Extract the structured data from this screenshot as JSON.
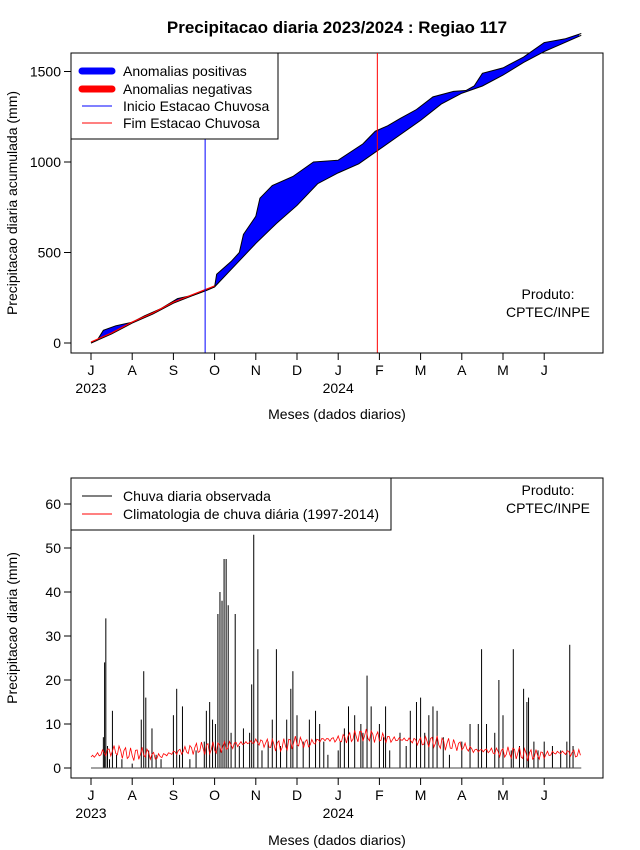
{
  "title": "Precipitacao diaria 2023/2024 : Regiao 117",
  "chart_data": [
    {
      "type": "area",
      "ylabel": "Precipitacao diaria acumulada (mm)",
      "xlabel": "Meses (dados diarios)",
      "ylim": [
        0,
        1750
      ],
      "yticks": [
        0,
        500,
        1000,
        1500
      ],
      "month_labels": [
        "J",
        "A",
        "S",
        "O",
        "N",
        "D",
        "J",
        "F",
        "M",
        "A",
        "M",
        "J"
      ],
      "year_labels": [
        "2023",
        "2024"
      ],
      "legend_placement": "top-left",
      "legend": [
        {
          "label": "Anomalias positivas",
          "color": "#0000ff"
        },
        {
          "label": "Anomalias negativas",
          "color": "#ff0000"
        },
        {
          "label": "Inicio Estacao Chuvosa",
          "color": "#0000ff"
        },
        {
          "label": "Fim Estacao Chuvosa",
          "color": "#ff0000"
        }
      ],
      "product_line1": "Produto:",
      "product_line2": "CPTEC/INPE",
      "season_start_month_index": 2.77,
      "season_end_month_index": 6.95,
      "observed_cumulative": [
        [
          0,
          0
        ],
        [
          0.15,
          15
        ],
        [
          0.3,
          70
        ],
        [
          0.6,
          95
        ],
        [
          1.0,
          115
        ],
        [
          1.3,
          150
        ],
        [
          1.7,
          190
        ],
        [
          2.1,
          245
        ],
        [
          2.5,
          265
        ],
        [
          2.8,
          290
        ],
        [
          3.0,
          310
        ],
        [
          3.05,
          380
        ],
        [
          3.4,
          450
        ],
        [
          3.6,
          500
        ],
        [
          3.7,
          600
        ],
        [
          4.0,
          700
        ],
        [
          4.1,
          800
        ],
        [
          4.4,
          870
        ],
        [
          4.9,
          920
        ],
        [
          5.4,
          1000
        ],
        [
          6.0,
          1010
        ],
        [
          6.6,
          1100
        ],
        [
          6.9,
          1170
        ],
        [
          7.2,
          1200
        ],
        [
          7.5,
          1240
        ],
        [
          7.9,
          1290
        ],
        [
          8.3,
          1360
        ],
        [
          8.8,
          1390
        ],
        [
          9.1,
          1395
        ],
        [
          9.3,
          1420
        ],
        [
          9.5,
          1490
        ],
        [
          10.0,
          1520
        ],
        [
          10.5,
          1580
        ],
        [
          11.0,
          1660
        ],
        [
          11.5,
          1680
        ],
        [
          11.9,
          1710
        ]
      ],
      "climatology_cumulative": [
        [
          0,
          0
        ],
        [
          0.5,
          50
        ],
        [
          1.0,
          110
        ],
        [
          1.5,
          160
        ],
        [
          2.0,
          220
        ],
        [
          2.5,
          265
        ],
        [
          3.0,
          310
        ],
        [
          3.5,
          430
        ],
        [
          4.0,
          550
        ],
        [
          4.5,
          660
        ],
        [
          5.0,
          760
        ],
        [
          5.5,
          880
        ],
        [
          6.0,
          940
        ],
        [
          6.5,
          990
        ],
        [
          7.0,
          1070
        ],
        [
          7.5,
          1150
        ],
        [
          8.0,
          1230
        ],
        [
          8.5,
          1320
        ],
        [
          9.0,
          1380
        ],
        [
          9.5,
          1420
        ],
        [
          10.0,
          1480
        ],
        [
          10.5,
          1550
        ],
        [
          11.0,
          1610
        ],
        [
          11.5,
          1660
        ],
        [
          11.9,
          1700
        ]
      ]
    },
    {
      "type": "bar",
      "ylabel": "Precipitacao diaria (mm)",
      "xlabel": "Meses (dados diarios)",
      "ylim": [
        0,
        65
      ],
      "yticks": [
        0,
        10,
        20,
        30,
        40,
        50,
        60
      ],
      "month_labels": [
        "J",
        "A",
        "S",
        "O",
        "N",
        "D",
        "J",
        "F",
        "M",
        "A",
        "M",
        "J"
      ],
      "year_labels": [
        "2023",
        "2024"
      ],
      "legend_placement": "top-left",
      "legend": [
        {
          "label": "Chuva diaria observada",
          "color": "#000000"
        },
        {
          "label": "Climatologia de chuva diária (1997-2014)",
          "color": "#ff0000"
        }
      ],
      "product_line1": "Produto:",
      "product_line2": "CPTEC/INPE",
      "observed_bars": [
        [
          0.3,
          7
        ],
        [
          0.33,
          24
        ],
        [
          0.36,
          34
        ],
        [
          0.4,
          5
        ],
        [
          0.45,
          2
        ],
        [
          0.52,
          13
        ],
        [
          0.62,
          3
        ],
        [
          0.75,
          2
        ],
        [
          1.0,
          1
        ],
        [
          1.22,
          11
        ],
        [
          1.28,
          22
        ],
        [
          1.33,
          16
        ],
        [
          1.4,
          4
        ],
        [
          1.48,
          9
        ],
        [
          1.58,
          3
        ],
        [
          1.7,
          2
        ],
        [
          2.0,
          12
        ],
        [
          2.08,
          18
        ],
        [
          2.15,
          3
        ],
        [
          2.22,
          14
        ],
        [
          2.4,
          2
        ],
        [
          2.55,
          4
        ],
        [
          2.75,
          6
        ],
        [
          2.8,
          13
        ],
        [
          2.88,
          15
        ],
        [
          2.95,
          11
        ],
        [
          3.02,
          10
        ],
        [
          3.08,
          35
        ],
        [
          3.13,
          40
        ],
        [
          3.18,
          38
        ],
        [
          3.23,
          47.5
        ],
        [
          3.28,
          47.5
        ],
        [
          3.33,
          37
        ],
        [
          3.4,
          8
        ],
        [
          3.5,
          35
        ],
        [
          3.6,
          5
        ],
        [
          3.7,
          9
        ],
        [
          3.85,
          8
        ],
        [
          3.9,
          19
        ],
        [
          3.95,
          53
        ],
        [
          4.05,
          27
        ],
        [
          4.15,
          4
        ],
        [
          4.3,
          6
        ],
        [
          4.4,
          11
        ],
        [
          4.5,
          27
        ],
        [
          4.6,
          5
        ],
        [
          4.75,
          11
        ],
        [
          4.85,
          18
        ],
        [
          4.9,
          22
        ],
        [
          5.0,
          12
        ],
        [
          5.15,
          6
        ],
        [
          5.3,
          11
        ],
        [
          5.45,
          13
        ],
        [
          5.55,
          10
        ],
        [
          5.65,
          6
        ],
        [
          5.75,
          3
        ],
        [
          6.0,
          4
        ],
        [
          6.05,
          6
        ],
        [
          6.15,
          9
        ],
        [
          6.25,
          14
        ],
        [
          6.4,
          12
        ],
        [
          6.55,
          10
        ],
        [
          6.6,
          8
        ],
        [
          6.7,
          21
        ],
        [
          6.8,
          14
        ],
        [
          7.0,
          10
        ],
        [
          7.1,
          7
        ],
        [
          7.15,
          14
        ],
        [
          7.25,
          4
        ],
        [
          7.5,
          8
        ],
        [
          7.65,
          5
        ],
        [
          7.75,
          13
        ],
        [
          7.9,
          15
        ],
        [
          8.0,
          16
        ],
        [
          8.1,
          8
        ],
        [
          8.2,
          12
        ],
        [
          8.3,
          14
        ],
        [
          8.4,
          13
        ],
        [
          8.55,
          7
        ],
        [
          8.7,
          3
        ],
        [
          9.0,
          6
        ],
        [
          9.2,
          10
        ],
        [
          9.4,
          10
        ],
        [
          9.48,
          27
        ],
        [
          9.6,
          10
        ],
        [
          9.8,
          8
        ],
        [
          9.9,
          20
        ],
        [
          10.0,
          12
        ],
        [
          10.2,
          4
        ],
        [
          10.25,
          27
        ],
        [
          10.4,
          5
        ],
        [
          10.5,
          18
        ],
        [
          10.58,
          15
        ],
        [
          10.62,
          16
        ],
        [
          10.75,
          6
        ],
        [
          10.85,
          4
        ],
        [
          11.0,
          6
        ],
        [
          11.2,
          5
        ],
        [
          11.4,
          4
        ],
        [
          11.55,
          6
        ],
        [
          11.62,
          28
        ],
        [
          11.7,
          5
        ]
      ],
      "climatology_daily": [
        [
          0,
          2.5
        ],
        [
          0.3,
          3.5
        ],
        [
          0.6,
          4.0
        ],
        [
          1.0,
          3.0
        ],
        [
          1.3,
          3.5
        ],
        [
          1.6,
          2.5
        ],
        [
          2.0,
          3.5
        ],
        [
          2.3,
          4.0
        ],
        [
          2.6,
          4.5
        ],
        [
          3.0,
          4.5
        ],
        [
          3.3,
          5.0
        ],
        [
          3.6,
          5.5
        ],
        [
          4.0,
          6.0
        ],
        [
          4.3,
          5.5
        ],
        [
          4.6,
          5.0
        ],
        [
          5.0,
          6.0
        ],
        [
          5.3,
          5.5
        ],
        [
          5.6,
          6.5
        ],
        [
          6.0,
          6.5
        ],
        [
          6.3,
          7.0
        ],
        [
          6.6,
          7.5
        ],
        [
          7.0,
          7.0
        ],
        [
          7.3,
          6.5
        ],
        [
          7.6,
          6.5
        ],
        [
          8.0,
          6.0
        ],
        [
          8.3,
          6.0
        ],
        [
          8.6,
          5.5
        ],
        [
          9.0,
          5.0
        ],
        [
          9.3,
          4.0
        ],
        [
          9.6,
          4.0
        ],
        [
          10.0,
          3.5
        ],
        [
          10.3,
          3.5
        ],
        [
          10.6,
          3.0
        ],
        [
          11.0,
          3.0
        ],
        [
          11.3,
          3.5
        ],
        [
          11.6,
          3.5
        ],
        [
          11.9,
          3.0
        ]
      ]
    }
  ]
}
